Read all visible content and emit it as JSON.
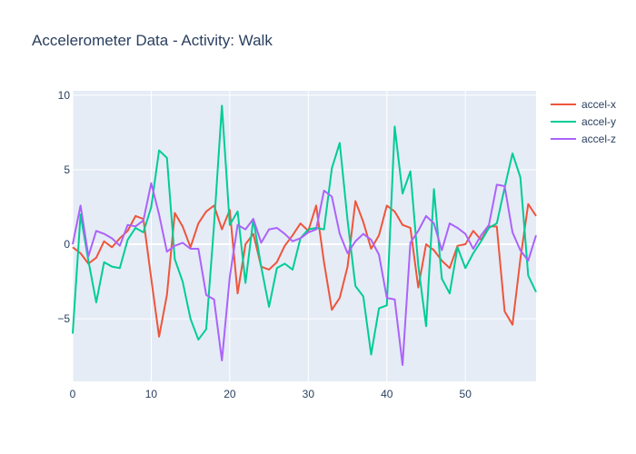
{
  "chart_data": {
    "type": "line",
    "title": "Accelerometer Data - Activity: Walk",
    "xlabel": "",
    "ylabel": "",
    "xlim": [
      0,
      59
    ],
    "ylim": [
      -9.2,
      10.3
    ],
    "x_ticks": [
      0,
      10,
      20,
      30,
      40,
      50
    ],
    "y_ticks": [
      -5,
      0,
      5,
      10
    ],
    "grid": true,
    "legend": "right",
    "x": [
      0,
      1,
      2,
      3,
      4,
      5,
      6,
      7,
      8,
      9,
      10,
      11,
      12,
      13,
      14,
      15,
      16,
      17,
      18,
      19,
      20,
      21,
      22,
      23,
      24,
      25,
      26,
      27,
      28,
      29,
      30,
      31,
      32,
      33,
      34,
      35,
      36,
      37,
      38,
      39,
      40,
      41,
      42,
      43,
      44,
      45,
      46,
      47,
      48,
      49,
      50,
      51,
      52,
      53,
      54,
      55,
      56,
      57,
      58,
      59
    ],
    "series": [
      {
        "name": "accel-x",
        "color": "#EF553B",
        "values": [
          -0.2,
          -0.6,
          -1.3,
          -0.9,
          0.2,
          -0.2,
          0.4,
          0.9,
          1.9,
          1.7,
          -2.3,
          -6.2,
          -3.4,
          2.1,
          1.2,
          -0.2,
          1.4,
          2.2,
          2.6,
          1.0,
          2.3,
          -3.3,
          0.0,
          0.7,
          -1.5,
          -1.7,
          -1.2,
          -0.1,
          0.6,
          1.4,
          0.9,
          2.6,
          -1.2,
          -4.4,
          -3.6,
          -1.5,
          2.9,
          1.5,
          -0.3,
          0.6,
          2.6,
          2.2,
          1.3,
          1.1,
          -2.9,
          0.0,
          -0.4,
          -1.1,
          -1.6,
          -0.1,
          0.0,
          0.9,
          0.3,
          1.2,
          1.2,
          -4.5,
          -5.4,
          -1.0,
          2.7,
          1.9
        ]
      },
      {
        "name": "accel-y",
        "color": "#00CC96",
        "values": [
          -6.0,
          2.0,
          -1.1,
          -3.9,
          -1.2,
          -1.5,
          -1.6,
          0.3,
          1.1,
          0.8,
          2.5,
          6.3,
          5.8,
          -1.0,
          -2.5,
          -5.0,
          -6.4,
          -5.7,
          1.3,
          9.3,
          1.3,
          2.2,
          -2.6,
          1.7,
          -1.5,
          -4.2,
          -1.6,
          -1.3,
          -1.7,
          0.4,
          1.0,
          1.1,
          1.0,
          5.1,
          6.8,
          1.6,
          -2.8,
          -3.5,
          -7.4,
          -4.3,
          -4.1,
          7.9,
          3.4,
          4.9,
          -1.4,
          -5.5,
          3.7,
          -2.3,
          -3.3,
          -0.2,
          -1.6,
          -0.6,
          0.2,
          1.1,
          1.4,
          3.8,
          6.1,
          4.5,
          -2.1,
          -3.2
        ]
      },
      {
        "name": "accel-z",
        "color": "#AB63FA",
        "values": [
          0.0,
          2.6,
          -0.8,
          0.9,
          0.7,
          0.4,
          -0.1,
          1.3,
          1.2,
          1.6,
          4.1,
          2.0,
          -0.5,
          -0.1,
          0.1,
          -0.3,
          -0.3,
          -3.4,
          -3.7,
          -7.8,
          -2.2,
          1.3,
          1.0,
          1.7,
          0.1,
          1.0,
          1.1,
          0.7,
          0.2,
          0.4,
          0.8,
          1.0,
          3.6,
          3.2,
          0.7,
          -0.6,
          0.2,
          0.7,
          0.3,
          -0.7,
          -3.6,
          -3.7,
          -8.1,
          0.1,
          0.9,
          1.9,
          1.4,
          -0.4,
          1.4,
          1.1,
          0.7,
          -0.3,
          0.6,
          1.3,
          4.0,
          3.9,
          0.8,
          -0.4,
          -1.1,
          0.6
        ]
      }
    ]
  }
}
